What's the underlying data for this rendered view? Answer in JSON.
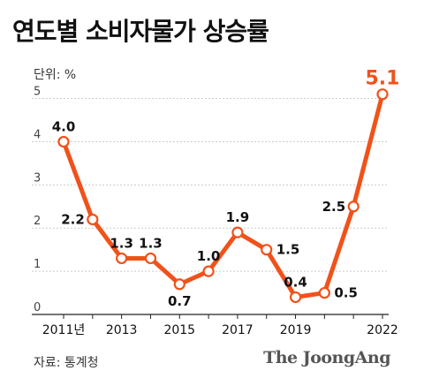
{
  "title": "연도별 소비자물가 상승률",
  "unit_label": "단위: %",
  "source": "자료: 통계청",
  "brand": "The JoongAng",
  "colors": {
    "line": "#f0521a",
    "highlight": "#f0521a",
    "grid": "#cccccc",
    "text": "#111111"
  },
  "chart_data": {
    "type": "line",
    "x": [
      2011,
      2012,
      2013,
      2014,
      2015,
      2016,
      2017,
      2018,
      2019,
      2020,
      2021,
      2022
    ],
    "series": [
      {
        "values": [
          4.0,
          2.2,
          1.3,
          1.3,
          0.7,
          1.0,
          1.9,
          1.5,
          0.4,
          0.5,
          2.5,
          5.1
        ]
      }
    ],
    "data_labels": [
      "4.0",
      "2.2",
      "1.3",
      "1.3",
      "0.7",
      "1.0",
      "1.9",
      "1.5",
      "0.4",
      "0.5",
      "2.5",
      "5.1"
    ],
    "x_tick_labels": [
      "2011년",
      "",
      "2013",
      "",
      "2015",
      "",
      "2017",
      "",
      "2019",
      "",
      "",
      "2022"
    ],
    "y_ticks": [
      0,
      1,
      2,
      3,
      4,
      5
    ],
    "ylim": [
      0,
      5.4
    ],
    "grid": true,
    "highlight_last": true
  }
}
